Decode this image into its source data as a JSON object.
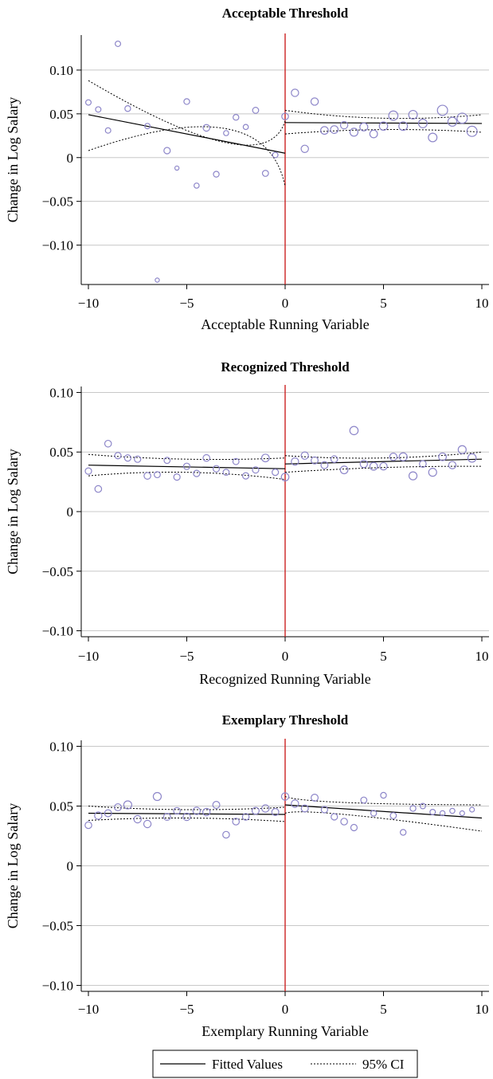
{
  "legend": {
    "fitted_label": "Fitted Values",
    "ci_label": "95% CI"
  },
  "colors": {
    "threshold": "#cc2222",
    "marker": "#8d86c9",
    "fit": "#000000",
    "grid": "#c8c8c8"
  },
  "chart_data": [
    {
      "type": "scatter",
      "title": "Acceptable Threshold",
      "xlabel": "Acceptable Running Variable",
      "ylabel": "Change in Log Salary",
      "xlim": [
        -10,
        10
      ],
      "ylim": [
        -0.145,
        0.14
      ],
      "xticks": [
        -10,
        -5,
        0,
        5,
        10
      ],
      "xtick_labels": [
        "−10",
        "−5",
        "0",
        "5",
        "10"
      ],
      "yticks": [
        -0.1,
        -0.05,
        0,
        0.05,
        0.1
      ],
      "ytick_labels": [
        "−0.10",
        "−0.05",
        "0",
        "0.05",
        "0.10"
      ],
      "threshold_x": 0,
      "grid": true,
      "points": [
        {
          "x": -10.0,
          "y": 0.063,
          "s": 1.2
        },
        {
          "x": -9.5,
          "y": 0.055,
          "s": 1.2
        },
        {
          "x": -9.0,
          "y": 0.031,
          "s": 1.2
        },
        {
          "x": -8.5,
          "y": 0.13,
          "s": 1.2
        },
        {
          "x": -8.0,
          "y": 0.056,
          "s": 1.3
        },
        {
          "x": -7.0,
          "y": 0.036,
          "s": 1.2
        },
        {
          "x": -6.5,
          "y": -0.14,
          "s": 0.8
        },
        {
          "x": -6.0,
          "y": 0.008,
          "s": 1.5
        },
        {
          "x": -5.5,
          "y": -0.012,
          "s": 0.8
        },
        {
          "x": -5.0,
          "y": 0.064,
          "s": 1.3
        },
        {
          "x": -4.5,
          "y": -0.032,
          "s": 1.1
        },
        {
          "x": -4.0,
          "y": 0.034,
          "s": 1.6
        },
        {
          "x": -3.5,
          "y": -0.019,
          "s": 1.3
        },
        {
          "x": -3.0,
          "y": 0.028,
          "s": 1.1
        },
        {
          "x": -2.5,
          "y": 0.046,
          "s": 1.3
        },
        {
          "x": -2.0,
          "y": 0.035,
          "s": 1.1
        },
        {
          "x": -1.5,
          "y": 0.054,
          "s": 1.4
        },
        {
          "x": -1.0,
          "y": -0.018,
          "s": 1.4
        },
        {
          "x": -0.5,
          "y": 0.003,
          "s": 1.2
        },
        {
          "x": 0.0,
          "y": 0.047,
          "s": 1.6
        },
        {
          "x": 0.5,
          "y": 0.074,
          "s": 1.8
        },
        {
          "x": 1.0,
          "y": 0.01,
          "s": 1.8
        },
        {
          "x": 1.5,
          "y": 0.064,
          "s": 1.8
        },
        {
          "x": 2.0,
          "y": 0.031,
          "s": 1.9
        },
        {
          "x": 2.5,
          "y": 0.032,
          "s": 1.9
        },
        {
          "x": 3.0,
          "y": 0.037,
          "s": 1.8
        },
        {
          "x": 3.5,
          "y": 0.029,
          "s": 2.0
        },
        {
          "x": 4.0,
          "y": 0.035,
          "s": 2.0
        },
        {
          "x": 4.5,
          "y": 0.027,
          "s": 1.9
        },
        {
          "x": 5.0,
          "y": 0.036,
          "s": 2.1
        },
        {
          "x": 5.5,
          "y": 0.048,
          "s": 2.4
        },
        {
          "x": 6.0,
          "y": 0.036,
          "s": 2.2
        },
        {
          "x": 6.5,
          "y": 0.049,
          "s": 2.2
        },
        {
          "x": 7.0,
          "y": 0.039,
          "s": 2.2
        },
        {
          "x": 7.5,
          "y": 0.023,
          "s": 2.2
        },
        {
          "x": 8.0,
          "y": 0.054,
          "s": 2.7
        },
        {
          "x": 8.5,
          "y": 0.041,
          "s": 2.3
        },
        {
          "x": 9.0,
          "y": 0.045,
          "s": 2.7
        },
        {
          "x": 9.5,
          "y": 0.03,
          "s": 2.7
        }
      ],
      "fit": [
        {
          "x": [
            -10,
            0
          ],
          "y": [
            0.049,
            0.005
          ],
          "lo": [
            0.008,
            -0.033
          ],
          "hi": [
            0.088,
            0.042
          ],
          "pinch": [
            -3,
            0.033,
            0.017
          ]
        },
        {
          "x": [
            0,
            10
          ],
          "y": [
            0.04,
            0.039
          ],
          "lo": [
            0.027,
            0.029
          ],
          "hi": [
            0.054,
            0.049
          ],
          "pinch": [
            5,
            0.032,
            0.045
          ]
        }
      ]
    },
    {
      "type": "scatter",
      "title": "Recognized Threshold",
      "xlabel": "Recognized Running Variable",
      "ylabel": "Change in Log Salary",
      "xlim": [
        -10,
        10
      ],
      "ylim": [
        -0.105,
        0.105
      ],
      "xticks": [
        -10,
        -5,
        0,
        5,
        10
      ],
      "xtick_labels": [
        "−10",
        "−5",
        "0",
        "5",
        "10"
      ],
      "yticks": [
        -0.1,
        -0.05,
        0,
        0.05,
        0.1
      ],
      "ytick_labels": [
        "−0.10",
        "−0.05",
        "0",
        "0.05",
        "0.10"
      ],
      "threshold_x": 0,
      "grid": true,
      "points": [
        {
          "x": -10.0,
          "y": 0.034,
          "s": 1.5
        },
        {
          "x": -9.5,
          "y": 0.019,
          "s": 1.6
        },
        {
          "x": -9.0,
          "y": 0.057,
          "s": 1.6
        },
        {
          "x": -8.5,
          "y": 0.047,
          "s": 1.5
        },
        {
          "x": -8.0,
          "y": 0.045,
          "s": 1.5
        },
        {
          "x": -7.5,
          "y": 0.044,
          "s": 1.5
        },
        {
          "x": -7.0,
          "y": 0.03,
          "s": 1.6
        },
        {
          "x": -6.5,
          "y": 0.031,
          "s": 1.4
        },
        {
          "x": -6.0,
          "y": 0.043,
          "s": 1.4
        },
        {
          "x": -5.5,
          "y": 0.029,
          "s": 1.5
        },
        {
          "x": -5.0,
          "y": 0.038,
          "s": 1.5
        },
        {
          "x": -4.5,
          "y": 0.032,
          "s": 1.5
        },
        {
          "x": -4.0,
          "y": 0.045,
          "s": 1.6
        },
        {
          "x": -3.5,
          "y": 0.036,
          "s": 1.5
        },
        {
          "x": -3.0,
          "y": 0.033,
          "s": 1.4
        },
        {
          "x": -2.5,
          "y": 0.042,
          "s": 1.4
        },
        {
          "x": -2.0,
          "y": 0.03,
          "s": 1.5
        },
        {
          "x": -1.5,
          "y": 0.035,
          "s": 1.5
        },
        {
          "x": -1.0,
          "y": 0.045,
          "s": 1.9
        },
        {
          "x": -0.5,
          "y": 0.033,
          "s": 1.5
        },
        {
          "x": 0.0,
          "y": 0.029,
          "s": 1.9
        },
        {
          "x": 0.5,
          "y": 0.042,
          "s": 1.8
        },
        {
          "x": 1.0,
          "y": 0.047,
          "s": 1.8
        },
        {
          "x": 1.5,
          "y": 0.043,
          "s": 1.7
        },
        {
          "x": 2.0,
          "y": 0.039,
          "s": 1.7
        },
        {
          "x": 2.5,
          "y": 0.044,
          "s": 1.6
        },
        {
          "x": 3.0,
          "y": 0.035,
          "s": 1.9
        },
        {
          "x": 3.5,
          "y": 0.068,
          "s": 2.1
        },
        {
          "x": 4.0,
          "y": 0.04,
          "s": 1.8
        },
        {
          "x": 4.5,
          "y": 0.038,
          "s": 1.9
        },
        {
          "x": 5.0,
          "y": 0.038,
          "s": 1.8
        },
        {
          "x": 5.5,
          "y": 0.046,
          "s": 1.8
        },
        {
          "x": 6.0,
          "y": 0.046,
          "s": 2.0
        },
        {
          "x": 6.5,
          "y": 0.03,
          "s": 2.0
        },
        {
          "x": 7.0,
          "y": 0.04,
          "s": 1.6
        },
        {
          "x": 7.5,
          "y": 0.033,
          "s": 2.0
        },
        {
          "x": 8.0,
          "y": 0.046,
          "s": 1.9
        },
        {
          "x": 8.5,
          "y": 0.039,
          "s": 1.8
        },
        {
          "x": 9.0,
          "y": 0.052,
          "s": 2.0
        },
        {
          "x": 9.5,
          "y": 0.045,
          "s": 2.1
        }
      ],
      "fit": [
        {
          "x": [
            -10,
            0
          ],
          "y": [
            0.039,
            0.036
          ],
          "lo": [
            0.03,
            0.027
          ],
          "hi": [
            0.048,
            0.045
          ],
          "pinch": [
            -5,
            0.033,
            0.044
          ]
        },
        {
          "x": [
            0,
            10
          ],
          "y": [
            0.04,
            0.044
          ],
          "lo": [
            0.033,
            0.038
          ],
          "hi": [
            0.047,
            0.05
          ],
          "pinch": [
            5,
            0.037,
            0.045
          ]
        }
      ]
    },
    {
      "type": "scatter",
      "title": "Exemplary Threshold",
      "xlabel": "Exemplary Running Variable",
      "ylabel": "Change in Log Salary",
      "xlim": [
        -10,
        10
      ],
      "ylim": [
        -0.105,
        0.105
      ],
      "xticks": [
        -10,
        -5,
        0,
        5,
        10
      ],
      "xtick_labels": [
        "−10",
        "−5",
        "0",
        "5",
        "10"
      ],
      "yticks": [
        -0.1,
        -0.05,
        0,
        0.05,
        0.1
      ],
      "ytick_labels": [
        "−0.10",
        "−0.05",
        "0",
        "0.05",
        "0.10"
      ],
      "threshold_x": 0,
      "grid": true,
      "points": [
        {
          "x": -10.0,
          "y": 0.034,
          "s": 1.6
        },
        {
          "x": -9.5,
          "y": 0.042,
          "s": 1.8
        },
        {
          "x": -9.0,
          "y": 0.044,
          "s": 1.7
        },
        {
          "x": -8.5,
          "y": 0.049,
          "s": 1.7
        },
        {
          "x": -8.0,
          "y": 0.051,
          "s": 2.0
        },
        {
          "x": -7.5,
          "y": 0.039,
          "s": 1.8
        },
        {
          "x": -7.0,
          "y": 0.035,
          "s": 1.8
        },
        {
          "x": -6.5,
          "y": 0.058,
          "s": 2.0
        },
        {
          "x": -6.0,
          "y": 0.041,
          "s": 1.7
        },
        {
          "x": -5.5,
          "y": 0.046,
          "s": 1.6
        },
        {
          "x": -5.0,
          "y": 0.041,
          "s": 1.8
        },
        {
          "x": -4.5,
          "y": 0.046,
          "s": 1.8
        },
        {
          "x": -4.0,
          "y": 0.045,
          "s": 1.8
        },
        {
          "x": -3.5,
          "y": 0.051,
          "s": 1.7
        },
        {
          "x": -3.0,
          "y": 0.026,
          "s": 1.6
        },
        {
          "x": -2.5,
          "y": 0.037,
          "s": 1.6
        },
        {
          "x": -2.0,
          "y": 0.041,
          "s": 1.6
        },
        {
          "x": -1.5,
          "y": 0.046,
          "s": 1.7
        },
        {
          "x": -1.0,
          "y": 0.048,
          "s": 1.8
        },
        {
          "x": -0.5,
          "y": 0.045,
          "s": 1.7
        },
        {
          "x": 0.0,
          "y": 0.058,
          "s": 1.8
        },
        {
          "x": 0.5,
          "y": 0.052,
          "s": 1.8
        },
        {
          "x": 1.0,
          "y": 0.048,
          "s": 1.7
        },
        {
          "x": 1.5,
          "y": 0.057,
          "s": 1.7
        },
        {
          "x": 2.0,
          "y": 0.047,
          "s": 1.5
        },
        {
          "x": 2.5,
          "y": 0.041,
          "s": 1.5
        },
        {
          "x": 3.0,
          "y": 0.037,
          "s": 1.6
        },
        {
          "x": 3.5,
          "y": 0.032,
          "s": 1.5
        },
        {
          "x": 4.0,
          "y": 0.055,
          "s": 1.4
        },
        {
          "x": 4.5,
          "y": 0.044,
          "s": 1.3
        },
        {
          "x": 5.0,
          "y": 0.059,
          "s": 1.3
        },
        {
          "x": 5.5,
          "y": 0.042,
          "s": 1.4
        },
        {
          "x": 6.0,
          "y": 0.028,
          "s": 1.3
        },
        {
          "x": 6.5,
          "y": 0.048,
          "s": 1.3
        },
        {
          "x": 7.0,
          "y": 0.05,
          "s": 1.2
        },
        {
          "x": 7.5,
          "y": 0.045,
          "s": 1.2
        },
        {
          "x": 8.0,
          "y": 0.044,
          "s": 1.1
        },
        {
          "x": 8.5,
          "y": 0.046,
          "s": 1.1
        },
        {
          "x": 9.0,
          "y": 0.044,
          "s": 1.0
        },
        {
          "x": 9.5,
          "y": 0.047,
          "s": 1.0
        }
      ],
      "fit": [
        {
          "x": [
            -10,
            0
          ],
          "y": [
            0.044,
            0.043
          ],
          "lo": [
            0.038,
            0.037
          ],
          "hi": [
            0.05,
            0.049
          ],
          "pinch": [
            -5,
            0.04,
            0.047
          ]
        },
        {
          "x": [
            0,
            10
          ],
          "y": [
            0.051,
            0.04
          ],
          "lo": [
            0.044,
            0.029
          ],
          "hi": [
            0.058,
            0.051
          ],
          "pinch": [
            3,
            0.043,
            0.053
          ]
        }
      ]
    }
  ]
}
